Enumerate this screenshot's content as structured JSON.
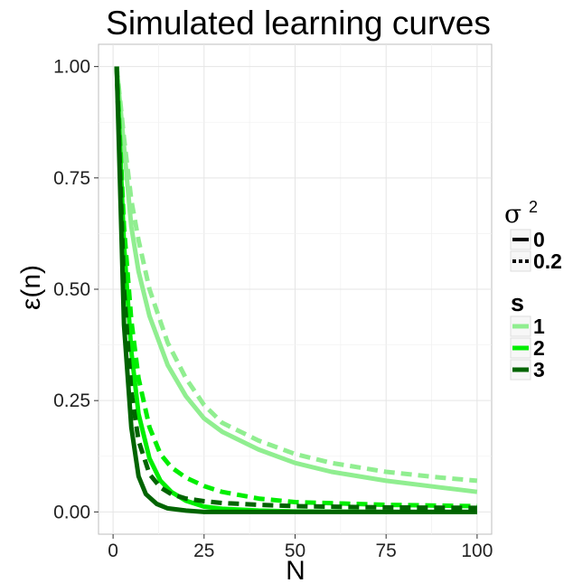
{
  "chart_data": {
    "type": "line",
    "title": "Simulated learning curves",
    "xlabel": "N",
    "ylabel": "ε(n)",
    "xlim": [
      -4,
      104
    ],
    "ylim": [
      -0.05,
      1.05
    ],
    "x_ticks": [
      0,
      25,
      50,
      75,
      100
    ],
    "x_tick_labels": [
      "0",
      "25",
      "50",
      "75",
      "100"
    ],
    "y_ticks": [
      0.0,
      0.25,
      0.5,
      0.75,
      1.0
    ],
    "y_tick_labels": [
      "0.00",
      "0.25",
      "0.50",
      "0.75",
      "1.00"
    ],
    "grid": true,
    "legend_position": "right",
    "legends": [
      {
        "title": "σ",
        "title_superscript": "2",
        "aesthetic": "linetype",
        "entries": [
          {
            "label": "0",
            "linetype": "solid"
          },
          {
            "label": "0.2",
            "linetype": "dashed"
          }
        ]
      },
      {
        "title": "s",
        "aesthetic": "color",
        "entries": [
          {
            "label": "1",
            "color": "#90ee90"
          },
          {
            "label": "2",
            "color": "#00ee00"
          },
          {
            "label": "3",
            "color": "#006400"
          }
        ]
      }
    ],
    "series": [
      {
        "s": "1",
        "sigma2": "0",
        "color": "#90ee90",
        "dash": "solid",
        "x": [
          1,
          3,
          5,
          7,
          10,
          15,
          20,
          25,
          30,
          40,
          50,
          60,
          75,
          90,
          100
        ],
        "y": [
          1.0,
          0.82,
          0.64,
          0.54,
          0.44,
          0.33,
          0.26,
          0.21,
          0.18,
          0.14,
          0.11,
          0.09,
          0.07,
          0.055,
          0.045
        ]
      },
      {
        "s": "1",
        "sigma2": "0.2",
        "color": "#90ee90",
        "dash": "dashed",
        "x": [
          1,
          3,
          5,
          7,
          10,
          15,
          20,
          25,
          30,
          40,
          50,
          60,
          75,
          90,
          100
        ],
        "y": [
          1.0,
          0.84,
          0.7,
          0.61,
          0.5,
          0.38,
          0.3,
          0.24,
          0.2,
          0.16,
          0.13,
          0.11,
          0.09,
          0.077,
          0.07
        ]
      },
      {
        "s": "2",
        "sigma2": "0",
        "color": "#00ee00",
        "dash": "solid",
        "x": [
          1,
          3,
          5,
          7,
          10,
          13,
          16,
          20,
          25,
          30,
          40,
          50,
          75,
          100
        ],
        "y": [
          1.0,
          0.6,
          0.36,
          0.22,
          0.12,
          0.07,
          0.045,
          0.025,
          0.012,
          0.007,
          0.003,
          0.001,
          0.0,
          0.0
        ]
      },
      {
        "s": "2",
        "sigma2": "0.2",
        "color": "#00ee00",
        "dash": "dashed",
        "x": [
          1,
          3,
          5,
          7,
          10,
          13,
          16,
          20,
          25,
          30,
          40,
          50,
          75,
          100
        ],
        "y": [
          1.0,
          0.64,
          0.43,
          0.3,
          0.19,
          0.13,
          0.1,
          0.077,
          0.058,
          0.045,
          0.03,
          0.022,
          0.016,
          0.013
        ]
      },
      {
        "s": "3",
        "sigma2": "0",
        "color": "#006400",
        "dash": "solid",
        "x": [
          1,
          3,
          5,
          7,
          9,
          12,
          15,
          20,
          25,
          30,
          50,
          75,
          100
        ],
        "y": [
          1.0,
          0.42,
          0.19,
          0.08,
          0.04,
          0.018,
          0.008,
          0.003,
          0.0,
          0.0,
          0.0,
          0.0,
          0.0
        ]
      },
      {
        "s": "3",
        "sigma2": "0.2",
        "color": "#006400",
        "dash": "dashed",
        "x": [
          1,
          3,
          5,
          7,
          10,
          13,
          16,
          20,
          25,
          30,
          40,
          50,
          75,
          100
        ],
        "y": [
          1.0,
          0.5,
          0.27,
          0.16,
          0.085,
          0.055,
          0.04,
          0.03,
          0.024,
          0.02,
          0.016,
          0.013,
          0.01,
          0.009
        ]
      }
    ]
  }
}
